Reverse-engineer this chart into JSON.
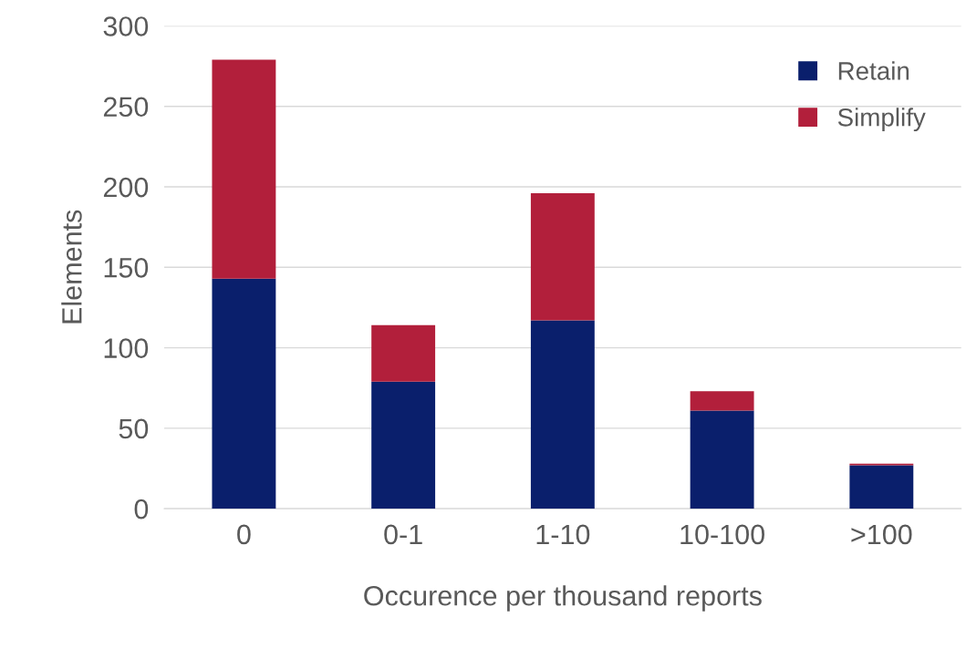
{
  "chart_data": {
    "type": "bar",
    "stacked": true,
    "categories": [
      "0",
      "0-1",
      "1-10",
      "10-100",
      ">100"
    ],
    "series": [
      {
        "name": "Retain",
        "color": "#0a1f6c",
        "values": [
          143,
          79,
          117,
          61,
          27
        ]
      },
      {
        "name": "Simplify",
        "color": "#b21f3b",
        "values": [
          136,
          35,
          79,
          12,
          1
        ]
      }
    ],
    "xlabel": "Occurence per thousand reports",
    "ylabel": "Elements",
    "ylim": [
      0,
      300
    ],
    "yticks": [
      0,
      50,
      100,
      150,
      200,
      250,
      300
    ],
    "grid": "y",
    "legend": "top right"
  }
}
